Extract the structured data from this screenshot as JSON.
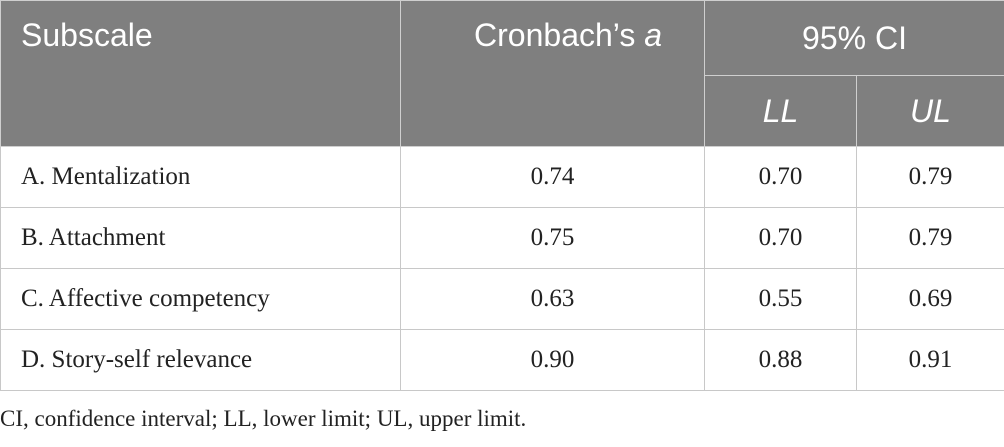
{
  "header": {
    "subscale": "Subscale",
    "alpha_prefix": "Cronbach’s ",
    "alpha_symbol": "a",
    "ci": "95% CI",
    "ll": "LL",
    "ul": "UL"
  },
  "rows": [
    {
      "subscale": "A. Mentalization",
      "alpha": "0.74",
      "ll": "0.70",
      "ul": "0.79"
    },
    {
      "subscale": "B. Attachment",
      "alpha": "0.75",
      "ll": "0.70",
      "ul": "0.79"
    },
    {
      "subscale": "C. Affective competency",
      "alpha": "0.63",
      "ll": "0.55",
      "ul": "0.69"
    },
    {
      "subscale": "D. Story-self relevance",
      "alpha": "0.90",
      "ll": "0.88",
      "ul": "0.91"
    }
  ],
  "footnote": "CI, confidence interval; LL, lower limit; UL, upper limit.",
  "colors": {
    "header_bg": "#7f7f7f",
    "header_text": "#ffffff",
    "body_text": "#222222",
    "grid": "#c8c8c8"
  }
}
